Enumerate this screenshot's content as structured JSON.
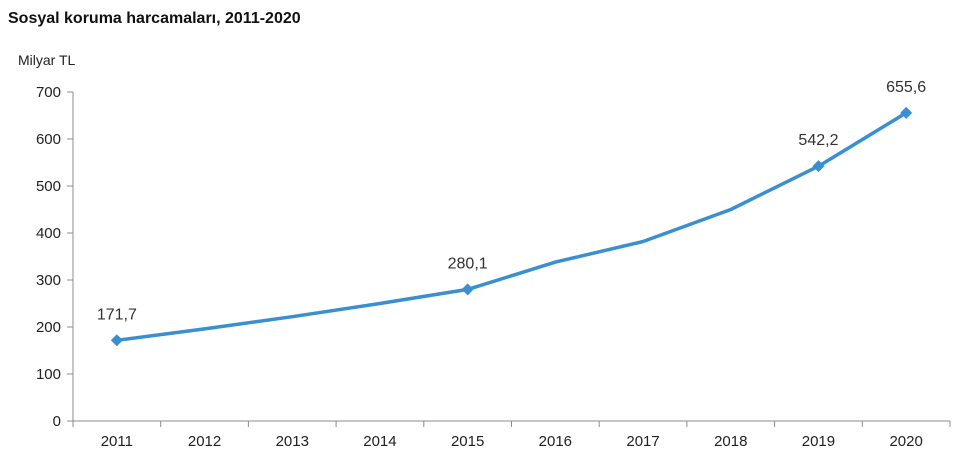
{
  "chart_data": {
    "type": "line",
    "title": "Sosyal koruma harcamaları, 2011-2020",
    "ylabel": "Milyar TL",
    "xlabel": "",
    "categories": [
      "2011",
      "2012",
      "2013",
      "2014",
      "2015",
      "2016",
      "2017",
      "2018",
      "2019",
      "2020"
    ],
    "yticks": [
      "0",
      "100",
      "200",
      "300",
      "400",
      "500",
      "600",
      "700"
    ],
    "ytick_values": [
      0,
      100,
      200,
      300,
      400,
      500,
      600,
      700
    ],
    "ylim": [
      0,
      700
    ],
    "series": [
      {
        "values": [
          171.7,
          196,
          222,
          250,
          280.1,
          338,
          382,
          450,
          542.2,
          655.6
        ],
        "color": "#3a8fd0"
      }
    ],
    "data_labels": [
      {
        "index": 0,
        "text": "171,7"
      },
      {
        "index": 4,
        "text": "280,1"
      },
      {
        "index": 8,
        "text": "542,2"
      },
      {
        "index": 9,
        "text": "655,6"
      }
    ],
    "marker_indices": [
      0,
      4,
      8,
      9
    ],
    "grid": false,
    "legend": "none",
    "axis_color": "#8c8c8c"
  }
}
